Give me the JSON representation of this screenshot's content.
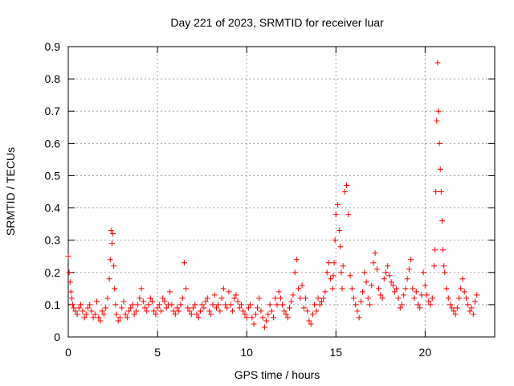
{
  "chart_data": {
    "type": "scatter",
    "title": "Day 221 of 2023, SRMTID for receiver luar",
    "xlabel": "GPS time / hours",
    "ylabel": "SRMTID / TECUs",
    "xlim": [
      0,
      23.9
    ],
    "ylim": [
      0,
      0.9
    ],
    "xticks": [
      0,
      5,
      10,
      15,
      20
    ],
    "xtick_labels": [
      "0",
      "5",
      "10",
      "15",
      "20"
    ],
    "yticks": [
      0,
      0.1,
      0.2,
      0.3,
      0.4,
      0.5,
      0.6,
      0.7,
      0.8,
      0.9
    ],
    "ytick_labels": [
      "0",
      "0.1",
      "0.2",
      "0.3",
      "0.4",
      "0.5",
      "0.6",
      "0.7",
      "0.8",
      "0.9"
    ],
    "grid": true,
    "marker": "+",
    "marker_color": "#ff0000",
    "series": [
      {
        "name": "SRMTID",
        "x": [
          0.0,
          0.05,
          0.1,
          0.15,
          0.2,
          0.25,
          0.3,
          0.4,
          0.5,
          0.6,
          0.7,
          0.8,
          0.9,
          1.0,
          1.1,
          1.2,
          1.3,
          1.4,
          1.5,
          1.6,
          1.7,
          1.8,
          1.9,
          2.0,
          2.1,
          2.2,
          2.3,
          2.35,
          2.4,
          2.45,
          2.5,
          2.55,
          2.6,
          2.65,
          2.7,
          2.8,
          2.9,
          3.0,
          3.1,
          3.2,
          3.3,
          3.4,
          3.5,
          3.6,
          3.7,
          3.8,
          3.9,
          4.0,
          4.1,
          4.2,
          4.3,
          4.4,
          4.5,
          4.6,
          4.7,
          4.8,
          4.9,
          5.0,
          5.1,
          5.2,
          5.3,
          5.4,
          5.5,
          5.6,
          5.7,
          5.8,
          5.9,
          6.0,
          6.1,
          6.2,
          6.3,
          6.4,
          6.5,
          6.6,
          6.7,
          6.8,
          6.9,
          7.0,
          7.1,
          7.2,
          7.3,
          7.4,
          7.5,
          7.6,
          7.7,
          7.8,
          7.9,
          8.0,
          8.1,
          8.2,
          8.3,
          8.4,
          8.5,
          8.6,
          8.7,
          8.8,
          8.9,
          9.0,
          9.1,
          9.2,
          9.3,
          9.4,
          9.5,
          9.6,
          9.7,
          9.8,
          9.9,
          10.0,
          10.1,
          10.2,
          10.3,
          10.4,
          10.5,
          10.6,
          10.7,
          10.8,
          10.9,
          11.0,
          11.1,
          11.2,
          11.3,
          11.4,
          11.5,
          11.6,
          11.7,
          11.8,
          11.9,
          12.0,
          12.1,
          12.2,
          12.3,
          12.4,
          12.5,
          12.6,
          12.7,
          12.8,
          12.9,
          13.0,
          13.1,
          13.2,
          13.3,
          13.4,
          13.5,
          13.6,
          13.7,
          13.8,
          13.9,
          14.0,
          14.1,
          14.2,
          14.3,
          14.4,
          14.5,
          14.6,
          14.7,
          14.8,
          14.85,
          14.9,
          14.95,
          15.0,
          15.1,
          15.2,
          15.25,
          15.3,
          15.35,
          15.4,
          15.5,
          15.6,
          15.7,
          15.8,
          15.9,
          16.0,
          16.1,
          16.2,
          16.3,
          16.4,
          16.5,
          16.6,
          16.7,
          16.8,
          16.9,
          17.0,
          17.1,
          17.2,
          17.3,
          17.4,
          17.5,
          17.6,
          17.7,
          17.8,
          17.9,
          18.0,
          18.1,
          18.2,
          18.3,
          18.4,
          18.5,
          18.6,
          18.7,
          18.8,
          18.9,
          19.0,
          19.1,
          19.2,
          19.3,
          19.4,
          19.5,
          19.6,
          19.7,
          19.8,
          19.9,
          20.0,
          20.1,
          20.2,
          20.3,
          20.4,
          20.5,
          20.55,
          20.6,
          20.65,
          20.7,
          20.75,
          20.8,
          20.85,
          20.9,
          20.95,
          21.0,
          21.05,
          21.1,
          21.2,
          21.3,
          21.4,
          21.5,
          21.6,
          21.7,
          21.8,
          21.9,
          22.0,
          22.1,
          22.2,
          22.3,
          22.4,
          22.5,
          22.6,
          22.7,
          22.8,
          22.9
        ],
        "y": [
          0.25,
          0.2,
          0.17,
          0.14,
          0.12,
          0.1,
          0.09,
          0.08,
          0.07,
          0.09,
          0.1,
          0.08,
          0.06,
          0.07,
          0.09,
          0.1,
          0.08,
          0.06,
          0.07,
          0.11,
          0.06,
          0.05,
          0.08,
          0.07,
          0.09,
          0.12,
          0.18,
          0.24,
          0.33,
          0.29,
          0.32,
          0.22,
          0.15,
          0.1,
          0.07,
          0.05,
          0.06,
          0.09,
          0.11,
          0.07,
          0.06,
          0.08,
          0.09,
          0.1,
          0.07,
          0.08,
          0.1,
          0.12,
          0.15,
          0.11,
          0.09,
          0.08,
          0.1,
          0.12,
          0.11,
          0.08,
          0.07,
          0.09,
          0.1,
          0.08,
          0.12,
          0.11,
          0.09,
          0.1,
          0.14,
          0.1,
          0.08,
          0.07,
          0.09,
          0.08,
          0.1,
          0.12,
          0.23,
          0.15,
          0.09,
          0.08,
          0.07,
          0.09,
          0.1,
          0.07,
          0.06,
          0.08,
          0.1,
          0.09,
          0.11,
          0.12,
          0.08,
          0.07,
          0.1,
          0.13,
          0.09,
          0.1,
          0.08,
          0.12,
          0.15,
          0.1,
          0.09,
          0.14,
          0.1,
          0.08,
          0.12,
          0.13,
          0.11,
          0.09,
          0.1,
          0.08,
          0.07,
          0.06,
          0.09,
          0.1,
          0.06,
          0.04,
          0.07,
          0.09,
          0.12,
          0.08,
          0.06,
          0.03,
          0.05,
          0.07,
          0.1,
          0.08,
          0.06,
          0.12,
          0.1,
          0.14,
          0.12,
          0.1,
          0.08,
          0.07,
          0.06,
          0.09,
          0.11,
          0.13,
          0.2,
          0.24,
          0.15,
          0.12,
          0.16,
          0.09,
          0.12,
          0.08,
          0.05,
          0.04,
          0.07,
          0.1,
          0.08,
          0.12,
          0.1,
          0.11,
          0.12,
          0.14,
          0.2,
          0.23,
          0.18,
          0.15,
          0.19,
          0.23,
          0.3,
          0.38,
          0.41,
          0.33,
          0.28,
          0.2,
          0.15,
          0.22,
          0.45,
          0.47,
          0.38,
          0.19,
          0.15,
          0.12,
          0.1,
          0.08,
          0.06,
          0.11,
          0.14,
          0.2,
          0.17,
          0.12,
          0.1,
          0.16,
          0.23,
          0.26,
          0.21,
          0.15,
          0.13,
          0.12,
          0.18,
          0.2,
          0.22,
          0.19,
          0.17,
          0.16,
          0.14,
          0.15,
          0.12,
          0.09,
          0.1,
          0.13,
          0.15,
          0.18,
          0.21,
          0.24,
          0.15,
          0.12,
          0.14,
          0.1,
          0.09,
          0.13,
          0.2,
          0.16,
          0.13,
          0.11,
          0.1,
          0.12,
          0.22,
          0.27,
          0.45,
          0.67,
          0.85,
          0.7,
          0.6,
          0.52,
          0.45,
          0.36,
          0.27,
          0.22,
          0.2,
          0.15,
          0.12,
          0.1,
          0.09,
          0.08,
          0.07,
          0.09,
          0.12,
          0.15,
          0.18,
          0.14,
          0.12,
          0.1,
          0.08,
          0.09,
          0.07,
          0.11,
          0.13
        ]
      }
    ]
  }
}
